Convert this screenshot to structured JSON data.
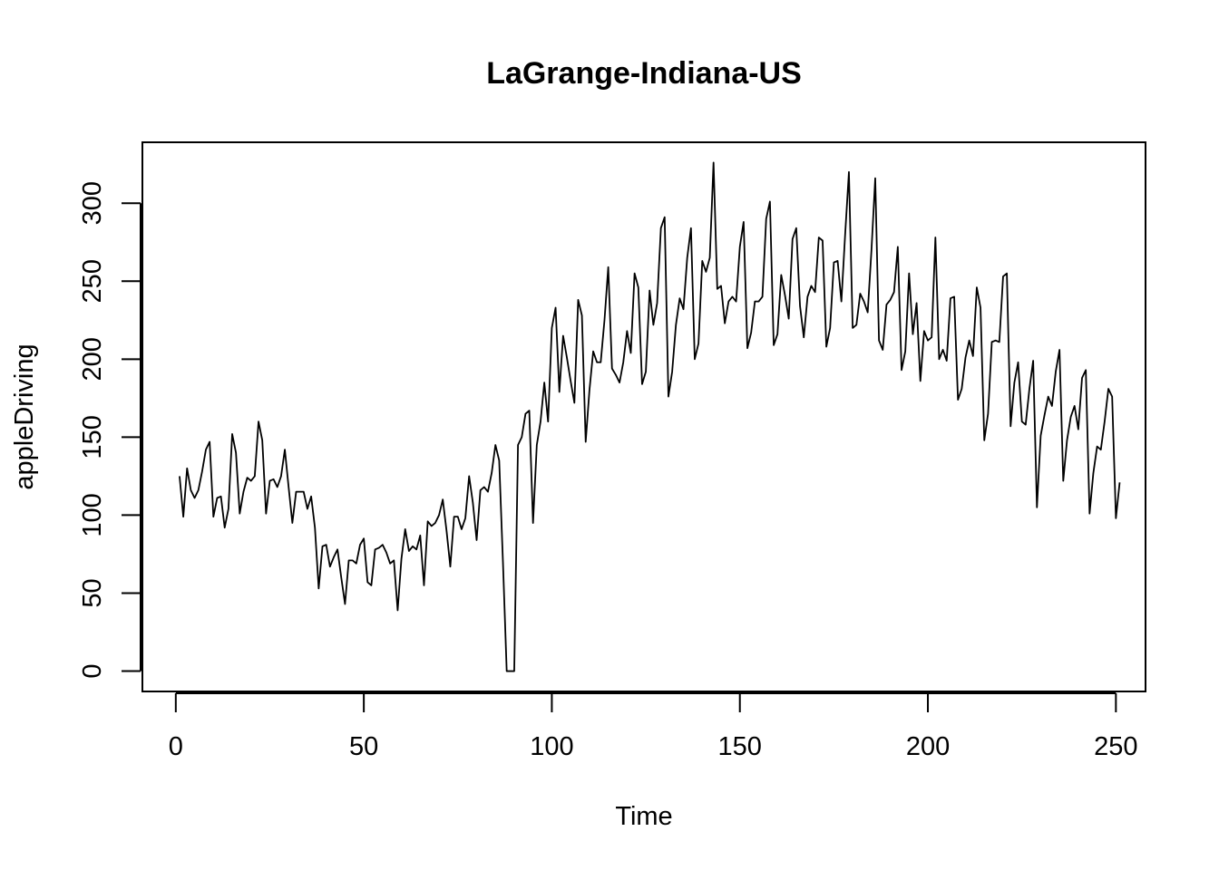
{
  "chart_data": {
    "type": "line",
    "title": "LaGrange-Indiana-US",
    "xlabel": "Time",
    "ylabel": "appleDriving",
    "xlim": [
      1,
      248
    ],
    "ylim": [
      0,
      326
    ],
    "x_ticks": [
      0,
      50,
      100,
      150,
      200,
      250
    ],
    "y_ticks": [
      0,
      50,
      100,
      150,
      200,
      250,
      300
    ],
    "x_tick_labels": [
      "0",
      "50",
      "100",
      "150",
      "200",
      "250"
    ],
    "y_tick_labels": [
      "0",
      "50",
      "100",
      "150",
      "200",
      "250",
      "300"
    ],
    "grid": false,
    "line_color": "#000000",
    "series": [
      {
        "x_start": 1,
        "values": [
          125,
          99,
          130,
          116,
          111,
          116,
          128,
          142,
          147,
          99,
          111,
          112,
          92,
          104,
          152,
          140,
          101,
          115,
          124,
          122,
          125,
          160,
          148,
          101,
          122,
          123,
          118,
          125,
          142,
          118,
          95,
          115,
          115,
          115,
          104,
          112,
          92,
          53,
          80,
          81,
          67,
          73,
          78,
          60,
          43,
          71,
          71,
          69,
          81,
          85,
          57,
          55,
          78,
          79,
          81,
          76,
          69,
          71,
          39,
          72,
          91,
          77,
          80,
          78,
          87,
          55,
          96,
          93,
          95,
          100,
          110,
          90,
          67,
          99,
          99,
          91,
          98,
          125,
          108,
          84,
          116,
          118,
          115,
          127,
          145,
          135,
          70,
          0,
          0,
          0,
          145,
          150,
          165,
          167,
          95,
          145,
          160,
          185,
          160,
          220,
          233,
          179,
          215,
          201,
          186,
          172,
          238,
          228,
          147,
          180,
          205,
          198,
          198,
          225,
          259,
          194,
          190,
          185,
          198,
          218,
          204,
          255,
          246,
          184,
          192,
          244,
          222,
          236,
          284,
          291,
          176,
          192,
          222,
          239,
          232,
          265,
          284,
          200,
          210,
          263,
          256,
          265,
          326,
          245,
          247,
          223,
          237,
          240,
          237,
          272,
          288,
          207,
          217,
          237,
          237,
          240,
          290,
          301,
          209,
          216,
          254,
          241,
          226,
          277,
          284,
          234,
          214,
          240,
          247,
          243,
          278,
          276,
          208,
          220,
          262,
          263,
          237,
          280,
          320,
          220,
          222,
          242,
          237,
          230,
          270,
          316,
          212,
          206,
          235,
          238,
          243,
          272,
          193,
          205,
          255,
          216,
          236,
          186,
          218,
          212,
          214,
          278,
          200,
          206,
          199,
          239,
          240,
          174,
          181,
          201,
          212,
          202,
          246,
          233,
          148,
          165,
          211,
          212,
          211,
          253,
          255,
          157,
          185,
          198,
          160,
          158,
          181,
          199,
          105,
          151,
          164,
          176,
          170,
          192,
          206,
          122,
          148,
          163,
          170,
          155,
          188,
          193,
          101,
          127,
          144,
          142,
          160,
          181,
          176,
          98,
          121
        ]
      }
    ]
  }
}
